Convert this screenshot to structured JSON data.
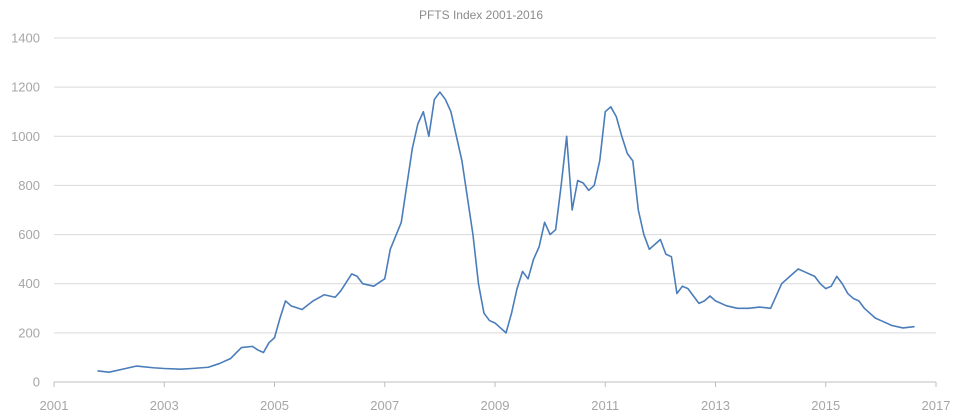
{
  "chart_data": {
    "type": "line",
    "title": "PFTS Index 2001-2016",
    "xlabel": "",
    "ylabel": "",
    "xlim": [
      2001,
      2017
    ],
    "ylim": [
      0,
      1400
    ],
    "grid": true,
    "legend": "none",
    "y_ticks": [
      "0",
      "200",
      "400",
      "600",
      "800",
      "1000",
      "1200",
      "1400"
    ],
    "y_tick_values": [
      0,
      200,
      400,
      600,
      800,
      1000,
      1200,
      1400
    ],
    "x_ticks": [
      "2001",
      "2003",
      "2005",
      "2007",
      "2009",
      "2011",
      "2013",
      "2015",
      "2017"
    ],
    "x_tick_values": [
      2001,
      2003,
      2005,
      2007,
      2009,
      2011,
      2013,
      2015,
      2017
    ],
    "colors": {
      "series": "#4a7dba",
      "grid": "#d9d9d9",
      "axis": "#bfbfbf",
      "text": "#a6a6a6"
    },
    "series": [
      {
        "name": "PFTS Index",
        "x": [
          2001.8,
          2002.0,
          2002.3,
          2002.5,
          2002.8,
          2003.0,
          2003.3,
          2003.5,
          2003.8,
          2004.0,
          2004.2,
          2004.4,
          2004.6,
          2004.7,
          2004.8,
          2004.9,
          2005.0,
          2005.1,
          2005.2,
          2005.3,
          2005.5,
          2005.7,
          2005.9,
          2006.1,
          2006.2,
          2006.4,
          2006.5,
          2006.6,
          2006.8,
          2007.0,
          2007.1,
          2007.3,
          2007.4,
          2007.5,
          2007.6,
          2007.7,
          2007.8,
          2007.9,
          2008.0,
          2008.1,
          2008.2,
          2008.3,
          2008.4,
          2008.5,
          2008.6,
          2008.7,
          2008.8,
          2008.9,
          2009.0,
          2009.1,
          2009.2,
          2009.3,
          2009.4,
          2009.5,
          2009.6,
          2009.7,
          2009.8,
          2009.9,
          2010.0,
          2010.1,
          2010.2,
          2010.3,
          2010.4,
          2010.5,
          2010.6,
          2010.7,
          2010.8,
          2010.9,
          2011.0,
          2011.1,
          2011.2,
          2011.3,
          2011.4,
          2011.5,
          2011.6,
          2011.7,
          2011.8,
          2011.9,
          2012.0,
          2012.1,
          2012.2,
          2012.3,
          2012.4,
          2012.5,
          2012.6,
          2012.7,
          2012.8,
          2012.9,
          2013.0,
          2013.2,
          2013.4,
          2013.6,
          2013.8,
          2014.0,
          2014.2,
          2014.4,
          2014.5,
          2014.6,
          2014.8,
          2014.9,
          2015.0,
          2015.1,
          2015.2,
          2015.3,
          2015.4,
          2015.5,
          2015.6,
          2015.7,
          2015.8,
          2015.9,
          2016.0,
          2016.2,
          2016.4,
          2016.6
        ],
        "values": [
          45,
          40,
          55,
          65,
          58,
          55,
          52,
          55,
          60,
          75,
          95,
          140,
          145,
          130,
          120,
          160,
          180,
          260,
          330,
          310,
          295,
          330,
          355,
          345,
          370,
          440,
          430,
          400,
          390,
          420,
          540,
          650,
          800,
          950,
          1050,
          1100,
          1000,
          1150,
          1180,
          1150,
          1100,
          1000,
          900,
          750,
          600,
          400,
          280,
          250,
          240,
          220,
          200,
          280,
          380,
          450,
          420,
          500,
          550,
          650,
          600,
          620,
          800,
          1000,
          700,
          820,
          810,
          780,
          800,
          900,
          1100,
          1120,
          1080,
          1000,
          930,
          900,
          700,
          600,
          540,
          560,
          580,
          520,
          510,
          360,
          390,
          380,
          350,
          320,
          330,
          350,
          330,
          310,
          300,
          300,
          305,
          300,
          400,
          440,
          460,
          450,
          430,
          400,
          380,
          390,
          430,
          400,
          360,
          340,
          330,
          300,
          280,
          260,
          250,
          230,
          220,
          225
        ]
      }
    ]
  }
}
